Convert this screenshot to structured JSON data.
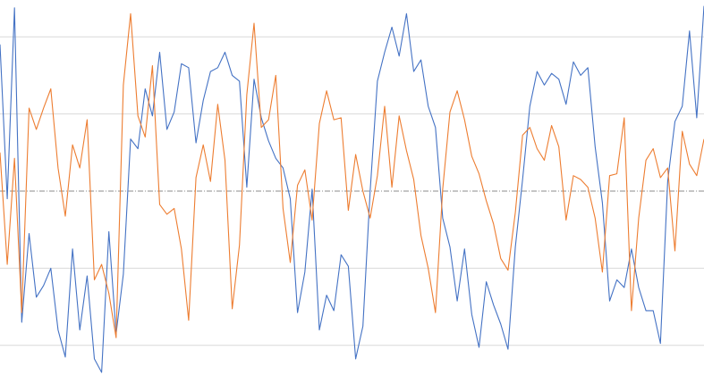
{
  "chart_data": {
    "type": "line",
    "title": "",
    "xlabel": "",
    "ylabel": "",
    "ylim": [
      -1.0,
      1.0
    ],
    "gridlines": [
      -0.8,
      -0.4,
      0.4,
      0.8
    ],
    "grid": true,
    "legend": "none",
    "reference_line": {
      "y": 0.0,
      "style": "dash-dot",
      "color": "#8c8c8c"
    },
    "series": [
      {
        "color": "#4472c4",
        "x_start": 0,
        "x_end": 787,
        "values": [
          0.76,
          -0.04,
          0.95,
          -0.68,
          -0.22,
          -0.55,
          -0.49,
          -0.4,
          -0.72,
          -0.86,
          -0.3,
          -0.72,
          -0.44,
          -0.87,
          -0.94,
          -0.21,
          -0.74,
          -0.43,
          0.27,
          0.22,
          0.53,
          0.39,
          0.72,
          0.32,
          0.41,
          0.66,
          0.64,
          0.25,
          0.47,
          0.62,
          0.64,
          0.72,
          0.6,
          0.57,
          0.02,
          0.58,
          0.38,
          0.26,
          0.17,
          0.12,
          -0.04,
          -0.63,
          -0.42,
          0.01,
          -0.72,
          -0.54,
          -0.62,
          -0.33,
          -0.39,
          -0.87,
          -0.7,
          0.0,
          0.57,
          0.72,
          0.85,
          0.7,
          0.92,
          0.62,
          0.68,
          0.44,
          0.33,
          -0.14,
          -0.29,
          -0.57,
          -0.3,
          -0.64,
          -0.81,
          -0.47,
          -0.59,
          -0.69,
          -0.82,
          -0.29,
          0.06,
          0.44,
          0.62,
          0.55,
          0.61,
          0.58,
          0.45,
          0.67,
          0.6,
          0.64,
          0.23,
          -0.06,
          -0.57,
          -0.46,
          -0.5,
          -0.3,
          -0.5,
          -0.62,
          -0.62,
          -0.79,
          0.05,
          0.36,
          0.44,
          0.83,
          0.38,
          0.96
        ]
      },
      {
        "color": "#ed7d31",
        "x_start": 0,
        "x_end": 787,
        "values": [
          0.2,
          -0.38,
          0.17,
          -0.63,
          0.43,
          0.32,
          0.43,
          0.53,
          0.12,
          -0.13,
          0.24,
          0.12,
          0.37,
          -0.46,
          -0.38,
          -0.53,
          -0.76,
          0.55,
          0.92,
          0.39,
          0.28,
          0.65,
          -0.07,
          -0.12,
          -0.09,
          -0.3,
          -0.67,
          0.07,
          0.24,
          0.05,
          0.45,
          0.16,
          -0.61,
          -0.28,
          0.5,
          0.87,
          0.33,
          0.37,
          0.6,
          -0.09,
          -0.37,
          0.03,
          0.11,
          -0.15,
          0.35,
          0.52,
          0.37,
          0.38,
          -0.1,
          0.19,
          0.0,
          -0.14,
          0.08,
          0.44,
          0.02,
          0.39,
          0.21,
          0.06,
          -0.23,
          -0.4,
          -0.63,
          0.01,
          0.41,
          0.52,
          0.37,
          0.18,
          0.09,
          -0.05,
          -0.17,
          -0.35,
          -0.41,
          -0.11,
          0.29,
          0.33,
          0.22,
          0.16,
          0.34,
          0.23,
          -0.15,
          0.08,
          0.06,
          0.02,
          -0.14,
          -0.42,
          0.08,
          0.09,
          0.38,
          -0.62,
          -0.14,
          0.16,
          0.22,
          0.07,
          0.12,
          -0.31,
          0.31,
          0.14,
          0.08,
          0.27
        ]
      }
    ]
  }
}
